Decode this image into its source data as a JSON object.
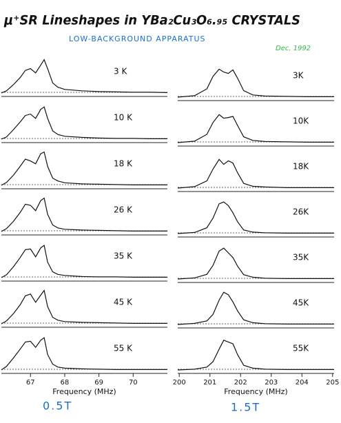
{
  "header": {
    "title": "μ⁺SR Lineshapes in YBa₂Cu₃O₆.₉₅ CRYSTALS",
    "subtitle": "LOW-BACKGROUND APPARATUS",
    "date": "Dec. 1992",
    "field_labels": [
      "0.5T",
      "1.5T"
    ]
  },
  "chart_data": [
    {
      "type": "line",
      "title": "3  K",
      "color": "#111",
      "xlim": [
        66.15,
        71.0
      ],
      "ylim": [
        0,
        100
      ],
      "x": [
        66.15,
        66.3,
        66.5,
        66.7,
        66.85,
        67.0,
        67.15,
        67.3,
        67.4,
        67.5,
        67.65,
        67.8,
        68.0,
        68.5,
        69.0,
        69.5,
        70.0,
        70.5,
        71.0
      ],
      "values": [
        2,
        8,
        25,
        45,
        65,
        70,
        58,
        80,
        95,
        70,
        30,
        18,
        12,
        8,
        6,
        5,
        4,
        4,
        3
      ]
    },
    {
      "type": "line",
      "title": "10  K",
      "color": "#111",
      "xlim": [
        66.15,
        71.0
      ],
      "ylim": [
        0,
        100
      ],
      "x": [
        66.15,
        66.3,
        66.5,
        66.7,
        66.85,
        67.0,
        67.15,
        67.3,
        67.4,
        67.5,
        67.65,
        67.8,
        68.0,
        68.5,
        69.0,
        69.5,
        70.0,
        70.5,
        71.0
      ],
      "values": [
        2,
        8,
        28,
        50,
        68,
        72,
        60,
        85,
        92,
        60,
        25,
        15,
        10,
        7,
        5,
        4,
        4,
        3,
        3
      ]
    },
    {
      "type": "line",
      "title": "18  K",
      "color": "#111",
      "xlim": [
        66.15,
        71.0
      ],
      "ylim": [
        0,
        100
      ],
      "x": [
        66.15,
        66.3,
        66.5,
        66.7,
        66.85,
        67.0,
        67.15,
        67.3,
        67.4,
        67.5,
        67.65,
        67.8,
        68.0,
        68.5,
        69.0,
        69.5,
        70.0,
        70.5,
        71.0
      ],
      "values": [
        2,
        10,
        30,
        55,
        75,
        70,
        62,
        90,
        95,
        55,
        22,
        14,
        9,
        6,
        5,
        4,
        3,
        3,
        3
      ]
    },
    {
      "type": "line",
      "title": "26  K",
      "color": "#111",
      "xlim": [
        66.15,
        71.0
      ],
      "ylim": [
        0,
        100
      ],
      "x": [
        66.15,
        66.3,
        66.5,
        66.7,
        66.85,
        67.0,
        67.15,
        67.3,
        67.4,
        67.5,
        67.65,
        67.8,
        68.0,
        68.5,
        69.0,
        69.5,
        70.0,
        70.5,
        71.0
      ],
      "values": [
        2,
        10,
        30,
        55,
        78,
        75,
        60,
        88,
        95,
        50,
        20,
        12,
        8,
        6,
        5,
        4,
        3,
        3,
        3
      ]
    },
    {
      "type": "line",
      "title": "35  K",
      "color": "#111",
      "xlim": [
        66.15,
        71.0
      ],
      "ylim": [
        0,
        100
      ],
      "x": [
        66.15,
        66.3,
        66.5,
        66.7,
        66.85,
        67.0,
        67.15,
        67.3,
        67.4,
        67.5,
        67.65,
        67.8,
        68.0,
        68.5,
        69.0,
        69.5,
        70.0,
        70.5,
        71.0
      ],
      "values": [
        2,
        10,
        32,
        58,
        80,
        82,
        60,
        85,
        92,
        45,
        18,
        11,
        8,
        5,
        4,
        4,
        3,
        3,
        3
      ]
    },
    {
      "type": "line",
      "title": "45  K",
      "color": "#111",
      "xlim": [
        66.15,
        71.0
      ],
      "ylim": [
        0,
        100
      ],
      "x": [
        66.15,
        66.3,
        66.5,
        66.7,
        66.85,
        67.0,
        67.15,
        67.3,
        67.4,
        67.5,
        67.65,
        67.8,
        68.0,
        68.5,
        69.0,
        69.5,
        70.0,
        70.5,
        71.0
      ],
      "values": [
        2,
        10,
        30,
        55,
        80,
        85,
        62,
        82,
        95,
        50,
        20,
        12,
        8,
        6,
        5,
        4,
        3,
        3,
        3
      ]
    },
    {
      "type": "line",
      "title": "55  K",
      "color": "#111",
      "xlim": [
        66.15,
        71.0
      ],
      "ylim": [
        0,
        100
      ],
      "x": [
        66.15,
        66.3,
        66.5,
        66.7,
        66.85,
        67.0,
        67.15,
        67.3,
        67.4,
        67.5,
        67.65,
        67.8,
        68.0,
        68.5,
        69.0,
        69.5,
        70.0,
        70.5,
        71.0
      ],
      "values": [
        2,
        12,
        35,
        60,
        80,
        82,
        65,
        85,
        92,
        45,
        18,
        10,
        7,
        5,
        4,
        3,
        3,
        3,
        3
      ],
      "xticks": [
        67,
        68,
        69,
        70
      ],
      "xlabel": "Frequency (MHz)"
    },
    {
      "type": "line",
      "title": "3K",
      "color": "#111",
      "xlim": [
        199.95,
        205.05
      ],
      "ylim": [
        0,
        100
      ],
      "x": [
        199.95,
        200.5,
        200.9,
        201.1,
        201.3,
        201.45,
        201.6,
        201.75,
        201.9,
        202.1,
        202.4,
        202.8,
        203.5,
        204.2,
        205.05
      ],
      "values": [
        2,
        6,
        25,
        60,
        80,
        72,
        68,
        78,
        55,
        20,
        8,
        5,
        4,
        3,
        3
      ]
    },
    {
      "type": "line",
      "title": "10K",
      "color": "#111",
      "xlim": [
        199.95,
        205.05
      ],
      "ylim": [
        0,
        100
      ],
      "x": [
        199.95,
        200.5,
        200.9,
        201.1,
        201.3,
        201.45,
        201.6,
        201.75,
        201.9,
        202.1,
        202.4,
        202.8,
        203.5,
        204.2,
        205.05
      ],
      "values": [
        2,
        6,
        25,
        58,
        80,
        70,
        72,
        75,
        50,
        18,
        8,
        5,
        4,
        3,
        3
      ]
    },
    {
      "type": "line",
      "title": "18K",
      "color": "#111",
      "xlim": [
        199.95,
        205.05
      ],
      "ylim": [
        0,
        100
      ],
      "x": [
        199.95,
        200.5,
        200.9,
        201.1,
        201.3,
        201.45,
        201.6,
        201.75,
        201.9,
        202.1,
        202.4,
        202.8,
        203.5,
        204.2,
        205.05
      ],
      "values": [
        2,
        6,
        22,
        55,
        82,
        68,
        78,
        72,
        45,
        15,
        7,
        5,
        3,
        3,
        3
      ]
    },
    {
      "type": "line",
      "title": "26K",
      "color": "#111",
      "xlim": [
        199.95,
        205.05
      ],
      "ylim": [
        0,
        100
      ],
      "x": [
        199.95,
        200.5,
        200.9,
        201.1,
        201.3,
        201.45,
        201.6,
        201.75,
        201.9,
        202.1,
        202.4,
        202.8,
        203.5,
        204.2,
        205.05
      ],
      "values": [
        2,
        5,
        18,
        45,
        85,
        90,
        80,
        60,
        35,
        12,
        6,
        4,
        3,
        3,
        3
      ]
    },
    {
      "type": "line",
      "title": "35K",
      "color": "#111",
      "xlim": [
        199.95,
        205.05
      ],
      "ylim": [
        0,
        100
      ],
      "x": [
        199.95,
        200.5,
        200.9,
        201.1,
        201.3,
        201.45,
        201.6,
        201.75,
        201.9,
        202.1,
        202.4,
        202.8,
        203.5,
        204.2,
        205.05
      ],
      "values": [
        2,
        5,
        15,
        40,
        80,
        88,
        75,
        62,
        38,
        14,
        7,
        4,
        3,
        3,
        3
      ]
    },
    {
      "type": "line",
      "title": "45K",
      "color": "#111",
      "xlim": [
        199.95,
        205.05
      ],
      "ylim": [
        0,
        100
      ],
      "x": [
        199.95,
        200.5,
        200.9,
        201.1,
        201.3,
        201.45,
        201.6,
        201.75,
        201.9,
        202.1,
        202.4,
        202.8,
        203.5,
        204.2,
        205.05
      ],
      "values": [
        2,
        5,
        12,
        30,
        70,
        92,
        85,
        65,
        40,
        15,
        7,
        4,
        3,
        3,
        3
      ]
    },
    {
      "type": "line",
      "title": "55K",
      "color": "#111",
      "xlim": [
        199.95,
        205.05
      ],
      "ylim": [
        0,
        100
      ],
      "x": [
        199.95,
        200.5,
        200.9,
        201.1,
        201.3,
        201.45,
        201.6,
        201.75,
        201.9,
        202.1,
        202.4,
        202.8,
        203.5,
        204.2,
        205.05
      ],
      "values": [
        2,
        4,
        10,
        25,
        60,
        85,
        80,
        75,
        45,
        15,
        7,
        4,
        3,
        3,
        3
      ],
      "xticks": [
        200,
        201,
        202,
        203,
        204,
        205
      ],
      "xlabel": "Frequency (MHz)"
    }
  ]
}
